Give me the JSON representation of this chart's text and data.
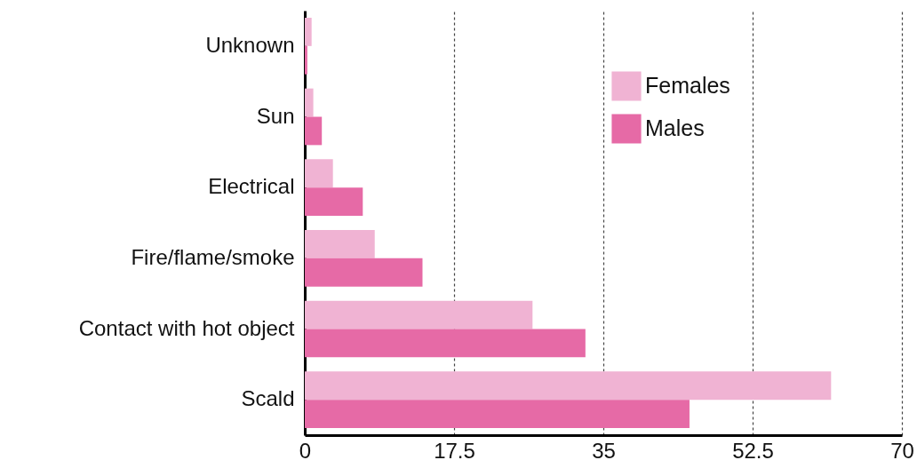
{
  "chart_data": {
    "type": "bar",
    "orientation": "horizontal",
    "categories": [
      "Unknown",
      "Sun",
      "Electrical",
      "Fire/flame/smoke",
      "Contact with hot object",
      "Scald"
    ],
    "series": [
      {
        "name": "Females",
        "color": "#f0b3d3",
        "values": [
          0.8,
          1.0,
          3.3,
          8.2,
          26.7,
          61.7
        ]
      },
      {
        "name": "Males",
        "color": "#e66aa6",
        "values": [
          0.3,
          2.0,
          6.8,
          13.8,
          32.9,
          45.1
        ]
      }
    ],
    "xlim": [
      0,
      70
    ],
    "xticks": [
      0,
      17.5,
      35,
      52.5,
      70
    ],
    "grid": "x",
    "legend": "top right"
  }
}
